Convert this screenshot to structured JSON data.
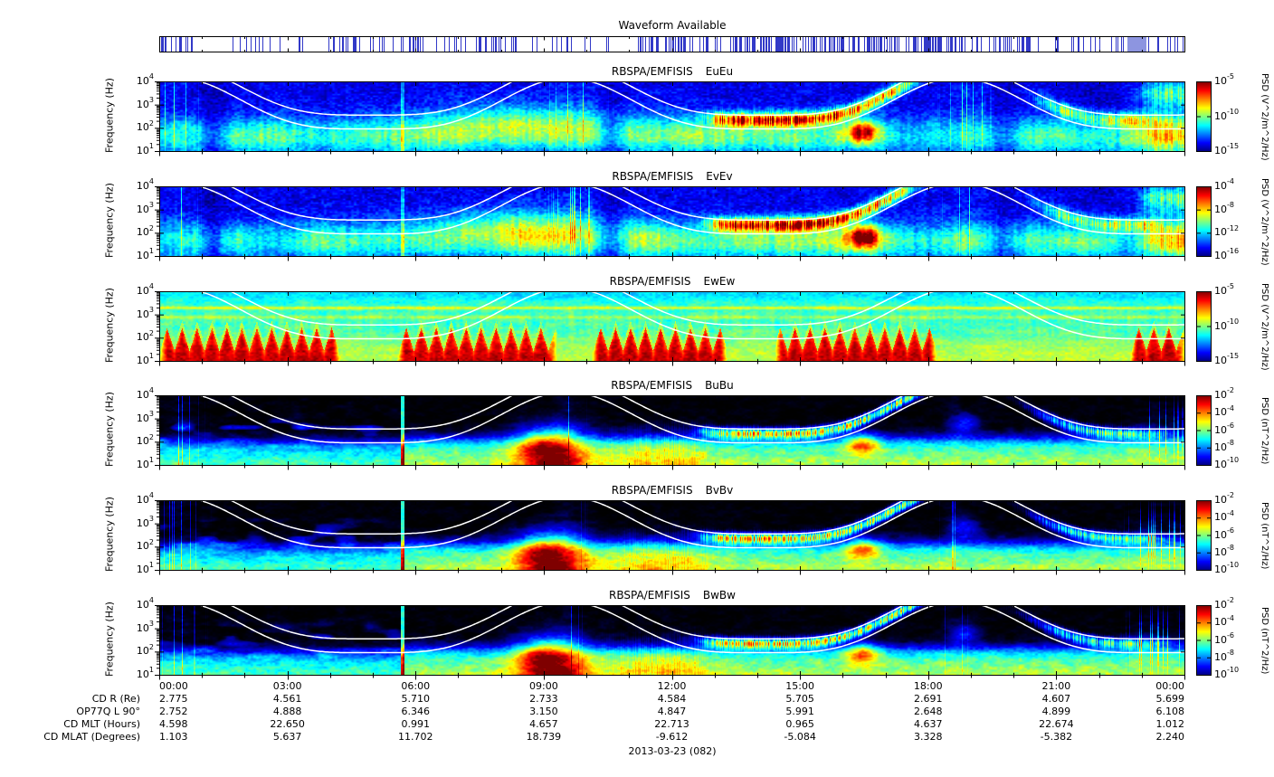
{
  "meta": {
    "date_label": "2013-03-23 (082)"
  },
  "waveform_bar": {
    "title": "Waveform Available",
    "line_color": "#3239c8",
    "block_color": "#8d95e0",
    "density_segments": [
      [
        0,
        0.55,
        0.5
      ],
      [
        0.55,
        1.9,
        0.14
      ],
      [
        1.9,
        2.5,
        0.3
      ],
      [
        2.5,
        4.05,
        0.07
      ],
      [
        4.05,
        4.7,
        0.5
      ],
      [
        4.7,
        5.45,
        0.12
      ],
      [
        5.45,
        6.2,
        0.38
      ],
      [
        6.2,
        7.25,
        0.18
      ],
      [
        7.25,
        8.35,
        0.4
      ],
      [
        8.35,
        9.25,
        0.15
      ],
      [
        9.25,
        10.05,
        0.32
      ],
      [
        10.05,
        11.35,
        0.12
      ],
      [
        11.35,
        12.55,
        0.45
      ],
      [
        12.55,
        13.4,
        0.28
      ],
      [
        13.4,
        14.75,
        0.68
      ],
      [
        14.75,
        15.55,
        0.42
      ],
      [
        15.55,
        16.75,
        0.62
      ],
      [
        16.75,
        17.65,
        0.4
      ],
      [
        17.65,
        18.55,
        0.55
      ],
      [
        18.55,
        19.75,
        0.32
      ],
      [
        19.75,
        20.55,
        0.48
      ],
      [
        20.55,
        21.75,
        0.18
      ],
      [
        21.75,
        22.65,
        0.3
      ],
      [
        22.65,
        23.1,
        2
      ],
      [
        23.1,
        24,
        0.15
      ]
    ]
  },
  "frequency_axis": {
    "label": "Frequency (Hz)",
    "decade_exponents": [
      4,
      3,
      2,
      1
    ]
  },
  "time_axis": {
    "ticks": [
      "00:00",
      "03:00",
      "06:00",
      "09:00",
      "12:00",
      "15:00",
      "18:00",
      "21:00",
      "00:00"
    ]
  },
  "panels": [
    {
      "instrument": "RBSPA/EMFISIS",
      "component": "EuEu",
      "kind": "E",
      "unit": "PSD (V^2/m^2/Hz)",
      "colorbar": {
        "top_exp": -5,
        "bottom_exp": -15,
        "label_exponents": [
          -5,
          -10,
          -15
        ]
      }
    },
    {
      "instrument": "RBSPA/EMFISIS",
      "component": "EvEv",
      "kind": "E",
      "unit": "PSD (V^2/m^2/Hz)",
      "colorbar": {
        "top_exp": -4,
        "bottom_exp": -16,
        "label_exponents": [
          -4,
          -8,
          -12,
          -16
        ]
      }
    },
    {
      "instrument": "RBSPA/EMFISIS",
      "component": "EwEw",
      "kind": "Ew",
      "unit": "PSD (V^2/m^2/Hz)",
      "colorbar": {
        "top_exp": -5,
        "bottom_exp": -15,
        "label_exponents": [
          -5,
          -10,
          -15
        ]
      }
    },
    {
      "instrument": "RBSPA/EMFISIS",
      "component": "BuBu",
      "kind": "B",
      "unit": "PSD (nT^2/Hz)",
      "colorbar": {
        "top_exp": -2,
        "bottom_exp": -10,
        "label_exponents": [
          -2,
          -4,
          -6,
          -8,
          -10
        ]
      }
    },
    {
      "instrument": "RBSPA/EMFISIS",
      "component": "BvBv",
      "kind": "B",
      "unit": "PSD (nT^2/Hz)",
      "colorbar": {
        "top_exp": -2,
        "bottom_exp": -10,
        "label_exponents": [
          -2,
          -4,
          -6,
          -8,
          -10
        ]
      }
    },
    {
      "instrument": "RBSPA/EMFISIS",
      "component": "BwBw",
      "kind": "B",
      "unit": "PSD (nT^2/Hz)",
      "colorbar": {
        "top_exp": -2,
        "bottom_exp": -10,
        "label_exponents": [
          -2,
          -4,
          -6,
          -8,
          -10
        ]
      }
    }
  ],
  "ephemeris": {
    "rows": [
      {
        "label": "CD R (Re)",
        "values": [
          "2.775",
          "4.561",
          "5.710",
          "2.733",
          "4.584",
          "5.705",
          "2.691",
          "4.607",
          "5.699"
        ]
      },
      {
        "label": "OP77Q L 90°",
        "values": [
          "2.752",
          "4.888",
          "6.346",
          "3.150",
          "4.847",
          "5.991",
          "2.648",
          "4.899",
          "6.108"
        ]
      },
      {
        "label": "CD MLT (Hours)",
        "values": [
          "4.598",
          "22.650",
          "0.991",
          "4.657",
          "22.713",
          "0.965",
          "4.637",
          "22.674",
          "1.012"
        ]
      },
      {
        "label": "CD MLAT (Degrees)",
        "values": [
          "1.103",
          "5.637",
          "11.702",
          "18.739",
          "-9.612",
          "-5.084",
          "3.328",
          "-5.382",
          "2.240"
        ]
      }
    ]
  },
  "chart_data": [
    {
      "type": "availability",
      "title": "Waveform Available",
      "x_range": [
        "00:00",
        "24:00"
      ],
      "note": "Blue vertical ticks mark times with burst waveform data; sparse 02:00-04:00 and 21:30-22:30, densest 13:00-18:00, solid filled block near 22:40-23:05."
    },
    {
      "type": "heatmap",
      "title": "RBSPA/EMFISIS EuEu",
      "x_ticks": [
        "00:00",
        "03:00",
        "06:00",
        "09:00",
        "12:00",
        "15:00",
        "18:00",
        "21:00",
        "00:00"
      ],
      "ylabel": "Frequency (Hz)",
      "y_scale": "log",
      "y_range_hz": [
        10,
        10000
      ],
      "z_label": "PSD (V^2/m^2/Hz)",
      "z_scale": "log",
      "z_range": [
        1e-15,
        1e-05
      ],
      "colorbar_tick_exponents": [
        -5,
        -10,
        -15
      ],
      "overlays": [
        "two white fce-related curves peaking near 00:30, 09:36, 18:42 UT and dipping at apogee"
      ],
      "features": [
        "blue background above ~1 kHz",
        "cyan-green band below ~500 Hz",
        "striated band just below upper white curve 13:00-17:30",
        "yellow patch ~16:30 near 70-200 Hz",
        "bright full-height band after 23:00",
        "dark vertical gaps near 01:15 and 10:30"
      ]
    },
    {
      "type": "heatmap",
      "title": "RBSPA/EMFISIS EvEv",
      "x_ticks": [
        "00:00",
        "03:00",
        "06:00",
        "09:00",
        "12:00",
        "15:00",
        "18:00",
        "21:00",
        "00:00"
      ],
      "ylabel": "Frequency (Hz)",
      "y_scale": "log",
      "y_range_hz": [
        10,
        10000
      ],
      "z_label": "PSD (V^2/m^2/Hz)",
      "z_scale": "log",
      "z_range": [
        1e-16,
        0.0001
      ],
      "colorbar_tick_exponents": [
        -4,
        -8,
        -12,
        -16
      ],
      "overlays": [
        "white fce-related curves"
      ],
      "features": [
        "same morphology as EuEu"
      ]
    },
    {
      "type": "heatmap",
      "title": "RBSPA/EMFISIS EwEw",
      "x_ticks": [
        "00:00",
        "03:00",
        "06:00",
        "09:00",
        "12:00",
        "15:00",
        "18:00",
        "21:00",
        "00:00"
      ],
      "ylabel": "Frequency (Hz)",
      "y_scale": "log",
      "y_range_hz": [
        10,
        10000
      ],
      "z_label": "PSD (V^2/m^2/Hz)",
      "z_scale": "log",
      "z_range": [
        1e-15,
        1e-05
      ],
      "colorbar_tick_exponents": [
        -5,
        -10,
        -15
      ],
      "overlays": [
        "white fce-related curves"
      ],
      "features": [
        "teal/green background with narrow cyan horizontal lines near 2-3 kHz",
        "intense red sawtooth interference bursts 10-250 Hz during ~00-04, 05:30-09:15, 10:10-13:20, 14:25-18:10, 22:45-24:00"
      ]
    },
    {
      "type": "heatmap",
      "title": "RBSPA/EMFISIS BuBu",
      "x_ticks": [
        "00:00",
        "03:00",
        "06:00",
        "09:00",
        "12:00",
        "15:00",
        "18:00",
        "21:00",
        "00:00"
      ],
      "ylabel": "Frequency (Hz)",
      "y_scale": "log",
      "y_range_hz": [
        10,
        10000
      ],
      "z_label": "PSD (nT^2/Hz)",
      "z_scale": "log",
      "z_range": [
        1e-10,
        0.01
      ],
      "colorbar_tick_exponents": [
        -2,
        -4,
        -6,
        -8,
        -10
      ],
      "overlays": [
        "white fce-related curves"
      ],
      "features": [
        "black background at high frequency",
        "green band below ~130 Hz",
        "dimmer left of ~05:40 with blue wisps to 1 kHz",
        "bright green-yellow blob 08:00-10:30",
        "striated band under upper curve 13:00-17:45",
        "yellow patch ~16:30",
        "bright columns 22:45-23:45",
        "vertical boundary line at ~05:40"
      ]
    },
    {
      "type": "heatmap",
      "title": "RBSPA/EMFISIS BvBv",
      "x_ticks": [
        "00:00",
        "03:00",
        "06:00",
        "09:00",
        "12:00",
        "15:00",
        "18:00",
        "21:00",
        "00:00"
      ],
      "ylabel": "Frequency (Hz)",
      "y_scale": "log",
      "y_range_hz": [
        10,
        10000
      ],
      "z_label": "PSD (nT^2/Hz)",
      "z_scale": "log",
      "z_range": [
        1e-10,
        0.01
      ],
      "colorbar_tick_exponents": [
        -2,
        -4,
        -6,
        -8,
        -10
      ],
      "overlays": [
        "white fce-related curves"
      ],
      "features": [
        "same morphology as BuBu"
      ]
    },
    {
      "type": "heatmap",
      "title": "RBSPA/EMFISIS BwBw",
      "x_ticks": [
        "00:00",
        "03:00",
        "06:00",
        "09:00",
        "12:00",
        "15:00",
        "18:00",
        "21:00",
        "00:00"
      ],
      "ylabel": "Frequency (Hz)",
      "y_scale": "log",
      "y_range_hz": [
        10,
        10000
      ],
      "z_label": "PSD (nT^2/Hz)",
      "z_scale": "log",
      "z_range": [
        1e-10,
        0.01
      ],
      "colorbar_tick_exponents": [
        -2,
        -4,
        -6,
        -8,
        -10
      ],
      "overlays": [
        "white fce-related curves"
      ],
      "features": [
        "same morphology as BuBu"
      ]
    },
    {
      "type": "table",
      "title": "Orbit ephemeris at 3-hour ticks",
      "columns": [
        "00:00",
        "03:00",
        "06:00",
        "09:00",
        "12:00",
        "15:00",
        "18:00",
        "21:00",
        "00:00"
      ],
      "rows": [
        {
          "label": "CD R (Re)",
          "values": [
            2.775,
            4.561,
            5.71,
            2.733,
            4.584,
            5.705,
            2.691,
            4.607,
            5.699
          ]
        },
        {
          "label": "OP77Q L 90°",
          "values": [
            2.752,
            4.888,
            6.346,
            3.15,
            4.847,
            5.991,
            2.648,
            4.899,
            6.108
          ]
        },
        {
          "label": "CD MLT (Hours)",
          "values": [
            4.598,
            22.65,
            0.991,
            4.657,
            22.713,
            0.965,
            4.637,
            22.674,
            1.012
          ]
        },
        {
          "label": "CD MLAT (Degrees)",
          "values": [
            1.103,
            5.637,
            11.702,
            18.739,
            -9.612,
            -5.084,
            3.328,
            -5.382,
            2.24
          ]
        }
      ],
      "footer": "2013-03-23 (082)"
    }
  ]
}
